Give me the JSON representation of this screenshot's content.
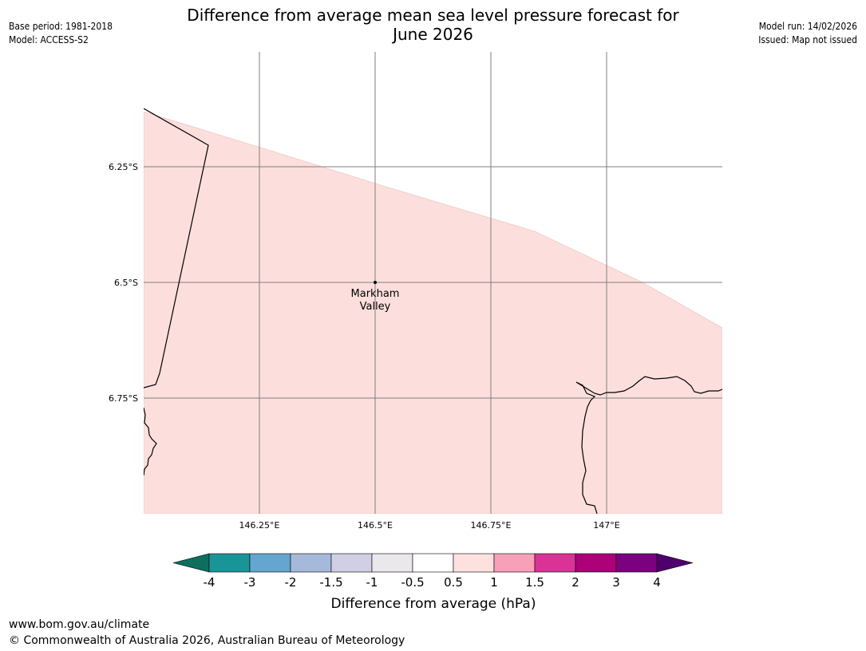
{
  "header": {
    "title_line1": "Difference from average mean sea level pressure forecast for",
    "title_line2": "June 2026",
    "base_period": "Base period: 1981-2018",
    "model": "Model: ACCESS-S2",
    "model_run": "Model run: 14/02/2026",
    "issued": "Issued: Map not issued"
  },
  "map": {
    "lat_labels": [
      "6.25°S",
      "6.5°S",
      "6.75°S"
    ],
    "lon_labels": [
      "146.25°E",
      "146.5°E",
      "146.75°E",
      "147°E"
    ],
    "place": {
      "name_line1": "Markham",
      "name_line2": "Valley"
    },
    "colors": {
      "fill": "#fcdfdc",
      "coast": "#000000",
      "grid": "#7f7f7f"
    }
  },
  "colorbar": {
    "tick_labels": [
      "-4",
      "-3",
      "-2",
      "-1.5",
      "-1",
      "-0.5",
      "0.5",
      "1",
      "1.5",
      "2",
      "3",
      "4"
    ],
    "label": "Difference from average (hPa)",
    "colors": {
      "under": "#0e6f5f",
      "bins": [
        "#1a9597",
        "#64a6cf",
        "#a5badb",
        "#d0cfe5",
        "#ebe8ec",
        "#ffffff",
        "#fde1df",
        "#f7a0b8",
        "#db3297",
        "#ad0079",
        "#7c0180"
      ],
      "over": "#4f006c"
    }
  },
  "footer": {
    "url": "www.bom.gov.au/climate",
    "copyright": "© Commonwealth of Australia 2026, Australian Bureau of Meteorology"
  }
}
